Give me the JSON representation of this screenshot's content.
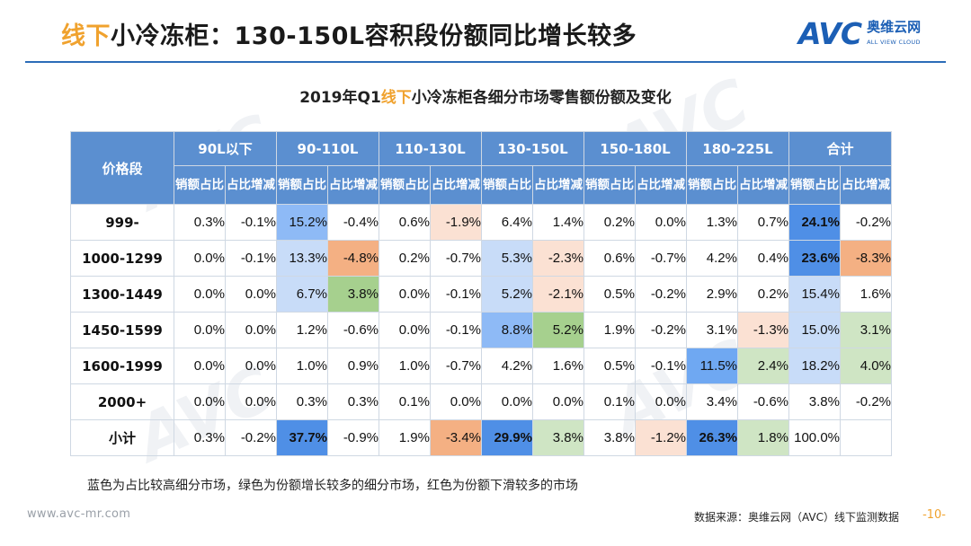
{
  "header": {
    "title_highlight": "线下",
    "title_rest": "小冷冻柜：130-150L容积段份额同比增长较多"
  },
  "logo": {
    "mark": "AVC",
    "cn": "奥维云网",
    "en": "ALL VIEW CLOUD"
  },
  "chart": {
    "title_year": "2019年Q1",
    "title_highlight": "线下",
    "title_rest": "小冷冻柜各细分市场零售额份额及变化"
  },
  "table": {
    "corner_label": "价格段",
    "capacity_groups": [
      "90L以下",
      "90-110L",
      "110-130L",
      "130-150L",
      "150-180L",
      "180-225L",
      "合计"
    ],
    "sub_headers": [
      "销额占比",
      "占比增减"
    ],
    "rows": [
      {
        "label": "999-",
        "cells": [
          "0.3%",
          "-0.1%",
          "15.2%",
          "-0.4%",
          "0.6%",
          "-1.9%",
          "6.4%",
          "1.4%",
          "0.2%",
          "0.0%",
          "1.3%",
          "0.7%",
          "24.1%",
          "-0.2%"
        ]
      },
      {
        "label": "1000-1299",
        "cells": [
          "0.0%",
          "-0.1%",
          "13.3%",
          "-4.8%",
          "0.2%",
          "-0.7%",
          "5.3%",
          "-2.3%",
          "0.6%",
          "-0.7%",
          "4.2%",
          "0.4%",
          "23.6%",
          "-8.3%"
        ]
      },
      {
        "label": "1300-1449",
        "cells": [
          "0.0%",
          "0.0%",
          "6.7%",
          "3.8%",
          "0.0%",
          "-0.1%",
          "5.2%",
          "-2.1%",
          "0.5%",
          "-0.2%",
          "2.9%",
          "0.2%",
          "15.4%",
          "1.6%"
        ]
      },
      {
        "label": "1450-1599",
        "cells": [
          "0.0%",
          "0.0%",
          "1.2%",
          "-0.6%",
          "0.0%",
          "-0.1%",
          "8.8%",
          "5.2%",
          "1.9%",
          "-0.2%",
          "3.1%",
          "-1.3%",
          "15.0%",
          "3.1%"
        ]
      },
      {
        "label": "1600-1999",
        "cells": [
          "0.0%",
          "0.0%",
          "1.0%",
          "0.9%",
          "1.0%",
          "-0.7%",
          "4.2%",
          "1.6%",
          "0.5%",
          "-0.1%",
          "11.5%",
          "2.4%",
          "18.2%",
          "4.0%"
        ]
      },
      {
        "label": "2000+",
        "cells": [
          "0.0%",
          "0.0%",
          "0.3%",
          "0.3%",
          "0.1%",
          "0.0%",
          "0.0%",
          "0.0%",
          "0.1%",
          "0.0%",
          "3.4%",
          "-0.6%",
          "3.8%",
          "-0.2%"
        ]
      },
      {
        "label": "小计",
        "cells": [
          "0.3%",
          "-0.2%",
          "37.7%",
          "-0.9%",
          "1.9%",
          "-3.4%",
          "29.9%",
          "3.8%",
          "3.8%",
          "-1.2%",
          "26.3%",
          "1.8%",
          "100.0%",
          ""
        ]
      }
    ]
  },
  "note": "蓝色为占比较高细分市场，绿色为份额增长较多的细分市场，红色为份额下滑较多的市场",
  "footer": {
    "website": "www.avc-mr.com",
    "source": "数据来源：奥维云网（AVC）线下监测数据",
    "page": "-10-"
  },
  "colors": {
    "header_blue": "#5b8fd0",
    "accent_orange": "#f0a22e",
    "brand_blue": "#1c5fb5"
  }
}
